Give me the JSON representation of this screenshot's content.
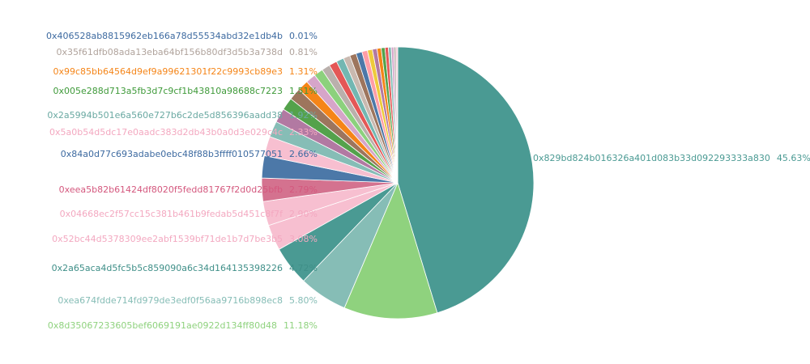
{
  "chart_data": {
    "type": "pie",
    "start_angle_deg": 0,
    "direction": "clockwise",
    "slices": [
      {
        "label": "0x829bd824b016326a401d083b33d092293333a830",
        "pct_label": "45.63%",
        "value": 45.63,
        "color": "#4a9a93",
        "label_color": "#4a9a93",
        "show_label": true
      },
      {
        "label": "0x8d35067233605bef6069191ae0922d134ff80d48",
        "pct_label": "11.18%",
        "value": 11.18,
        "color": "#8fd27e",
        "label_color": "#8fd27e",
        "show_label": true
      },
      {
        "label": "0xea674fdde714fd979de3edf0f56aa9716b898ec8",
        "pct_label": "5.80%",
        "value": 5.8,
        "color": "#86bdb6",
        "label_color": "#86bdb6",
        "show_label": true
      },
      {
        "label": "0x2a65aca4d5fc5b5c859090a6c34d164135398226",
        "pct_label": "4.72%",
        "value": 4.72,
        "color": "#4a9a93",
        "label_color": "#3f8f88",
        "show_label": true
      },
      {
        "label": "0x52bc44d5378309ee2abf1539bf71de1b7d7be3b5",
        "pct_label": "3.08%",
        "value": 3.08,
        "color": "#f7bfd0",
        "label_color": "#f3a8c0",
        "show_label": true
      },
      {
        "label": "0x04668ec2f57cc15c381b461b9fedab5d451c8f7f",
        "pct_label": "2.90%",
        "value": 2.9,
        "color": "#f7bfd0",
        "label_color": "#f3a8c0",
        "show_label": true
      },
      {
        "label": "0xeea5b82b61424df8020f5fedd81767f2d0d25bfb",
        "pct_label": "2.79%",
        "value": 2.79,
        "color": "#d4728f",
        "label_color": "#d4587e",
        "show_label": true
      },
      {
        "label": "0x84a0d77c693adabe0ebc48f88b3ffff010577051",
        "pct_label": "2.66%",
        "value": 2.66,
        "color": "#4c78a8",
        "label_color": "#3d6aa0",
        "show_label": true
      },
      {
        "label": "0x5a0b54d5dc17e0aadc383d2db43b0a0d3e029c4c",
        "pct_label": "2.33%",
        "value": 2.33,
        "color": "#f7bfd0",
        "label_color": "#f3a8c0",
        "show_label": true
      },
      {
        "label": "0x2a5994b501e6a560e727b6c2de5d856396aadd38",
        "pct_label": "1.92%",
        "value": 1.92,
        "color": "#86bdb6",
        "label_color": "#6aa9a2",
        "show_label": true
      },
      {
        "label": "",
        "pct_label": "",
        "value": 1.7,
        "color": "#b279a2",
        "label_color": "#b279a2",
        "show_label": false
      },
      {
        "label": "0x005e288d713a5fb3d7c9cf1b43810a98688c7223",
        "pct_label": "1.51%",
        "value": 1.51,
        "color": "#54a24b",
        "label_color": "#3f9a3a",
        "show_label": true
      },
      {
        "label": "",
        "pct_label": "",
        "value": 1.45,
        "color": "#9d755d",
        "label_color": "#9d755d",
        "show_label": false
      },
      {
        "label": "0x99c85bb64564d9ef9a99621301f22c9993cb89e3",
        "pct_label": "1.31%",
        "value": 1.31,
        "color": "#f58518",
        "label_color": "#f58518",
        "show_label": true
      },
      {
        "label": "",
        "pct_label": "",
        "value": 1.2,
        "color": "#d6a5c9",
        "label_color": "#d6a5c9",
        "show_label": false
      },
      {
        "label": "",
        "pct_label": "",
        "value": 1.1,
        "color": "#8cd17d",
        "label_color": "#8cd17d",
        "show_label": false
      },
      {
        "label": "",
        "pct_label": "",
        "value": 1.0,
        "color": "#bab0ac",
        "label_color": "#bab0ac",
        "show_label": false
      },
      {
        "label": "",
        "pct_label": "",
        "value": 0.95,
        "color": "#e45756",
        "label_color": "#e45756",
        "show_label": false
      },
      {
        "label": "",
        "pct_label": "",
        "value": 0.9,
        "color": "#72b7b2",
        "label_color": "#72b7b2",
        "show_label": false
      },
      {
        "label": "0x35f61dfb08ada13eba64bf156b80df3d5b3a738d",
        "pct_label": "0.81%",
        "value": 0.81,
        "color": "#c9b9b0",
        "label_color": "#b0a39c",
        "show_label": true
      },
      {
        "label": "",
        "pct_label": "",
        "value": 0.78,
        "color": "#9d755d",
        "label_color": "#9d755d",
        "show_label": false
      },
      {
        "label": "",
        "pct_label": "",
        "value": 0.72,
        "color": "#4c78a8",
        "label_color": "#4c78a8",
        "show_label": false
      },
      {
        "label": "",
        "pct_label": "",
        "value": 0.66,
        "color": "#ff9da6",
        "label_color": "#ff9da6",
        "show_label": false
      },
      {
        "label": "",
        "pct_label": "",
        "value": 0.6,
        "color": "#eeca3b",
        "label_color": "#eeca3b",
        "show_label": false
      },
      {
        "label": "",
        "pct_label": "",
        "value": 0.55,
        "color": "#b279a2",
        "label_color": "#b279a2",
        "show_label": false
      },
      {
        "label": "",
        "pct_label": "",
        "value": 0.5,
        "color": "#f58518",
        "label_color": "#f58518",
        "show_label": false
      },
      {
        "label": "",
        "pct_label": "",
        "value": 0.45,
        "color": "#54a24b",
        "label_color": "#54a24b",
        "show_label": false
      },
      {
        "label": "",
        "pct_label": "",
        "value": 0.4,
        "color": "#e45756",
        "label_color": "#e45756",
        "show_label": false
      },
      {
        "label": "",
        "pct_label": "",
        "value": 0.35,
        "color": "#86bdb6",
        "label_color": "#86bdb6",
        "show_label": false
      },
      {
        "label": "",
        "pct_label": "",
        "value": 0.3,
        "color": "#d6a5c9",
        "label_color": "#d6a5c9",
        "show_label": false
      },
      {
        "label": "",
        "pct_label": "",
        "value": 0.25,
        "color": "#bab0ac",
        "label_color": "#bab0ac",
        "show_label": false
      },
      {
        "label": "",
        "pct_label": "",
        "value": 0.2,
        "color": "#f7bfd0",
        "label_color": "#f7bfd0",
        "show_label": false
      },
      {
        "label": "0x406528ab8815962eb166a78d55534abd32e1db4b",
        "pct_label": "0.01%",
        "value": 0.01,
        "color": "#4c78a8",
        "label_color": "#3d6aa0",
        "show_label": true
      }
    ],
    "legend": "none",
    "title": ""
  }
}
